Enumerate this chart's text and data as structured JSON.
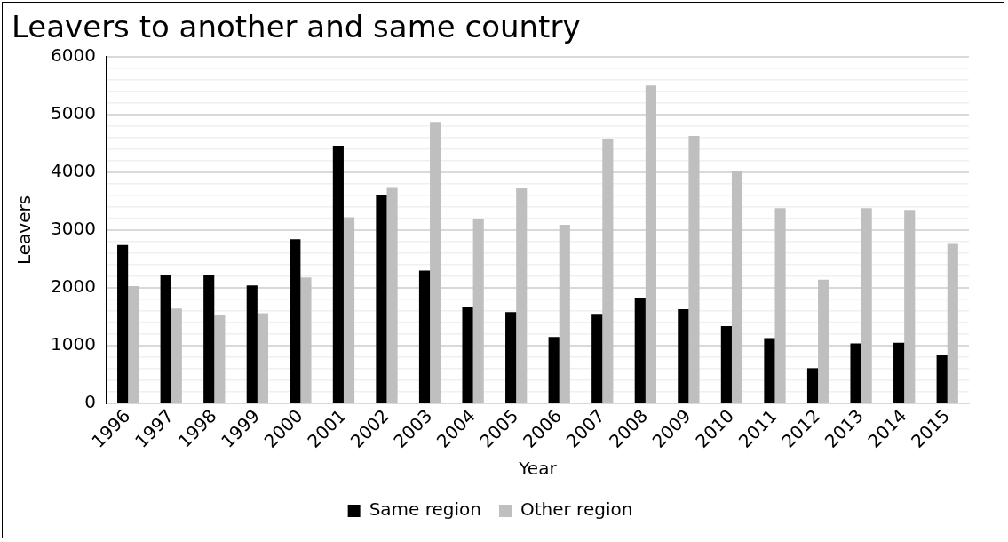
{
  "chart_data": {
    "type": "bar",
    "title": "Leavers to another and same country",
    "xlabel": "Year",
    "ylabel": "Leavers",
    "categories": [
      "1996",
      "1997",
      "1998",
      "1999",
      "2000",
      "2001",
      "2002",
      "2003",
      "2004",
      "2005",
      "2006",
      "2007",
      "2008",
      "2009",
      "2010",
      "2011",
      "2012",
      "2013",
      "2014",
      "2015"
    ],
    "series": [
      {
        "name": "Same region",
        "color": "#000000",
        "values": [
          2740,
          2230,
          2220,
          2040,
          2840,
          4460,
          3600,
          2300,
          1660,
          1580,
          1150,
          1550,
          1830,
          1630,
          1340,
          1130,
          610,
          1040,
          1050,
          840
        ]
      },
      {
        "name": "Other region",
        "color": "#bfbfbf",
        "values": [
          2030,
          1640,
          1540,
          1560,
          2180,
          3220,
          3730,
          4870,
          3190,
          3720,
          3090,
          4580,
          5500,
          4630,
          4030,
          3380,
          2140,
          3380,
          3350,
          2760
        ]
      }
    ],
    "ylim": [
      0,
      6000
    ],
    "yticks": [
      0,
      {
        "value": 200,
        "label": null
      },
      {
        "value": 400,
        "label": null
      },
      {
        "value": 600,
        "label": null
      },
      {
        "value": 800,
        "label": null
      },
      1000,
      {
        "value": 1200,
        "label": null
      },
      {
        "value": 1400,
        "label": null
      },
      {
        "value": 1600,
        "label": null
      },
      {
        "value": 1800,
        "label": null
      },
      2000,
      {
        "value": 2200,
        "label": null
      },
      {
        "value": 2400,
        "label": null
      },
      {
        "value": 2600,
        "label": null
      },
      {
        "value": 2800,
        "label": null
      },
      3000,
      {
        "value": 3200,
        "label": null
      },
      {
        "value": 3400,
        "label": null
      },
      {
        "value": 3600,
        "label": null
      },
      {
        "value": 3800,
        "label": null
      },
      4000,
      {
        "value": 4200,
        "label": null
      },
      {
        "value": 4400,
        "label": null
      },
      {
        "value": 4600,
        "label": null
      },
      {
        "value": 4800,
        "label": null
      },
      5000,
      {
        "value": 5200,
        "label": null
      },
      {
        "value": 5400,
        "label": null
      },
      {
        "value": 5600,
        "label": null
      },
      {
        "value": 5800,
        "label": null
      },
      6000
    ],
    "grid": "y",
    "legend": "bottom"
  }
}
